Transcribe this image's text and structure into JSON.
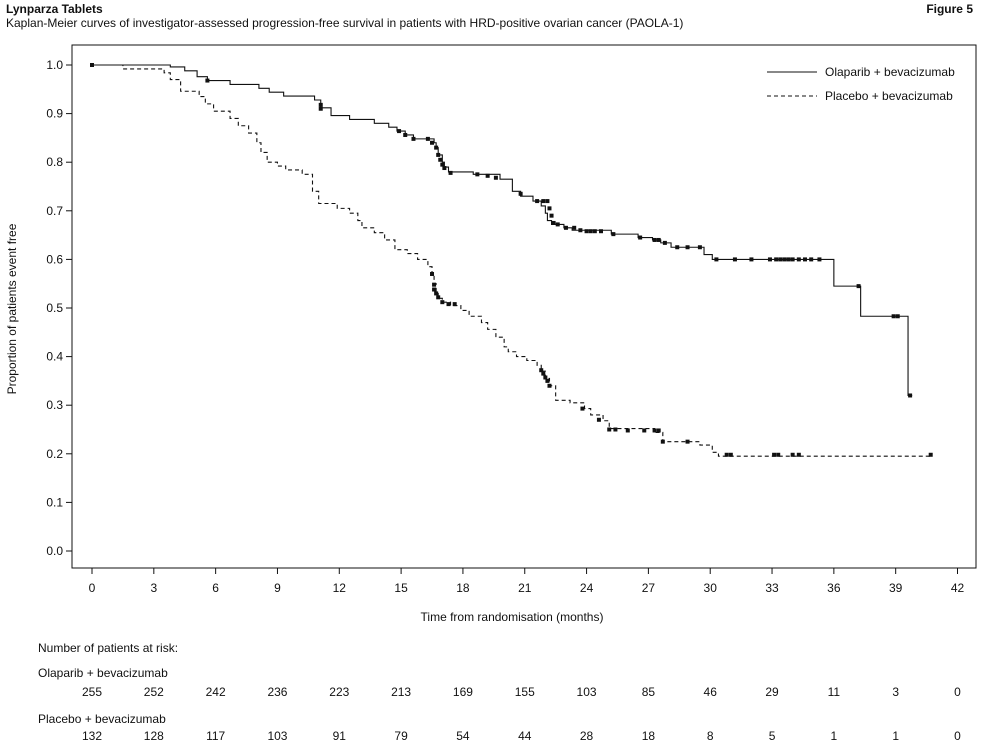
{
  "header": {
    "product": "Lynparza Tablets",
    "figure_label": "Figure 5",
    "subtitle": "Kaplan-Meier curves of investigator-assessed progression-free survival in patients with HRD-positive ovarian cancer (PAOLA-1)"
  },
  "chart_data": {
    "type": "line",
    "subtype": "kaplan-meier step",
    "xlabel": "Time from randomisation (months)",
    "ylabel": "Proportion of patients event free",
    "xlim": [
      0,
      42
    ],
    "ylim": [
      0.0,
      1.0
    ],
    "xticks": [
      0,
      3,
      6,
      9,
      12,
      15,
      18,
      21,
      24,
      27,
      30,
      33,
      36,
      39,
      42
    ],
    "yticks": [
      "0.0",
      "0.1",
      "0.2",
      "0.3",
      "0.4",
      "0.5",
      "0.6",
      "0.7",
      "0.8",
      "0.9",
      "1.0"
    ],
    "grid": false,
    "legend_position": "top-right",
    "series": [
      {
        "name": "Olaparib + bevacizumab",
        "style": "solid",
        "color": "#111111",
        "steps": [
          [
            0,
            1.0
          ],
          [
            3.8,
            0.996
          ],
          [
            4.5,
            0.988
          ],
          [
            5.1,
            0.976
          ],
          [
            5.6,
            0.968
          ],
          [
            6.7,
            0.96
          ],
          [
            8.1,
            0.952
          ],
          [
            8.6,
            0.944
          ],
          [
            9.3,
            0.936
          ],
          [
            10.8,
            0.928
          ],
          [
            11.1,
            0.912
          ],
          [
            11.6,
            0.896
          ],
          [
            12.5,
            0.888
          ],
          [
            13.7,
            0.88
          ],
          [
            14.4,
            0.872
          ],
          [
            14.8,
            0.864
          ],
          [
            15.2,
            0.856
          ],
          [
            15.6,
            0.848
          ],
          [
            16.6,
            0.84
          ],
          [
            16.7,
            0.83
          ],
          [
            16.8,
            0.815
          ],
          [
            17.0,
            0.8
          ],
          [
            17.1,
            0.79
          ],
          [
            17.3,
            0.78
          ],
          [
            18.5,
            0.775
          ],
          [
            19.8,
            0.765
          ],
          [
            20.4,
            0.74
          ],
          [
            20.8,
            0.73
          ],
          [
            21.4,
            0.72
          ],
          [
            21.8,
            0.71
          ],
          [
            22.0,
            0.695
          ],
          [
            22.1,
            0.68
          ],
          [
            22.3,
            0.672
          ],
          [
            22.9,
            0.665
          ],
          [
            23.3,
            0.66
          ],
          [
            25.2,
            0.652
          ],
          [
            26.5,
            0.645
          ],
          [
            27.2,
            0.64
          ],
          [
            27.6,
            0.634
          ],
          [
            28.1,
            0.625
          ],
          [
            29.7,
            0.61
          ],
          [
            30.1,
            0.6
          ],
          [
            36.0,
            0.545
          ],
          [
            37.3,
            0.483
          ],
          [
            39.6,
            0.32
          ]
        ],
        "end": 39.8,
        "censor": [
          [
            0,
            1.0
          ],
          [
            5.6,
            0.968
          ],
          [
            11.1,
            0.918
          ],
          [
            11.1,
            0.91
          ],
          [
            14.9,
            0.864
          ],
          [
            15.2,
            0.856
          ],
          [
            15.6,
            0.848
          ],
          [
            16.3,
            0.848
          ],
          [
            16.5,
            0.84
          ],
          [
            16.7,
            0.83
          ],
          [
            16.8,
            0.815
          ],
          [
            16.9,
            0.805
          ],
          [
            17.0,
            0.795
          ],
          [
            17.1,
            0.788
          ],
          [
            17.4,
            0.778
          ],
          [
            18.7,
            0.775
          ],
          [
            19.2,
            0.772
          ],
          [
            19.6,
            0.768
          ],
          [
            20.8,
            0.735
          ],
          [
            21.6,
            0.72
          ],
          [
            21.9,
            0.72
          ],
          [
            22.1,
            0.72
          ],
          [
            22.2,
            0.705
          ],
          [
            22.3,
            0.69
          ],
          [
            22.4,
            0.675
          ],
          [
            22.6,
            0.672
          ],
          [
            23.0,
            0.665
          ],
          [
            23.4,
            0.665
          ],
          [
            23.7,
            0.66
          ],
          [
            24.0,
            0.658
          ],
          [
            24.2,
            0.658
          ],
          [
            24.4,
            0.658
          ],
          [
            24.7,
            0.658
          ],
          [
            25.3,
            0.652
          ],
          [
            26.6,
            0.645
          ],
          [
            27.3,
            0.64
          ],
          [
            27.5,
            0.64
          ],
          [
            27.8,
            0.634
          ],
          [
            28.4,
            0.625
          ],
          [
            28.9,
            0.625
          ],
          [
            29.5,
            0.625
          ],
          [
            30.3,
            0.6
          ],
          [
            31.2,
            0.6
          ],
          [
            32.0,
            0.6
          ],
          [
            32.9,
            0.6
          ],
          [
            33.2,
            0.6
          ],
          [
            33.4,
            0.6
          ],
          [
            33.6,
            0.6
          ],
          [
            33.8,
            0.6
          ],
          [
            34.0,
            0.6
          ],
          [
            34.3,
            0.6
          ],
          [
            34.6,
            0.6
          ],
          [
            34.9,
            0.6
          ],
          [
            35.3,
            0.6
          ],
          [
            37.2,
            0.545
          ],
          [
            38.9,
            0.483
          ],
          [
            39.1,
            0.483
          ],
          [
            39.7,
            0.32
          ]
        ]
      },
      {
        "name": "Placebo + bevacizumab",
        "style": "dashed",
        "color": "#111111",
        "steps": [
          [
            0,
            1.0
          ],
          [
            1.5,
            0.992
          ],
          [
            3.5,
            0.984
          ],
          [
            3.8,
            0.97
          ],
          [
            4.3,
            0.946
          ],
          [
            5.2,
            0.935
          ],
          [
            5.5,
            0.92
          ],
          [
            5.9,
            0.905
          ],
          [
            6.7,
            0.89
          ],
          [
            7.1,
            0.875
          ],
          [
            7.6,
            0.86
          ],
          [
            8.0,
            0.84
          ],
          [
            8.2,
            0.82
          ],
          [
            8.5,
            0.8
          ],
          [
            9.0,
            0.792
          ],
          [
            9.4,
            0.784
          ],
          [
            10.2,
            0.775
          ],
          [
            10.7,
            0.74
          ],
          [
            11.0,
            0.715
          ],
          [
            11.9,
            0.705
          ],
          [
            12.5,
            0.695
          ],
          [
            12.9,
            0.68
          ],
          [
            13.1,
            0.665
          ],
          [
            13.7,
            0.655
          ],
          [
            14.2,
            0.64
          ],
          [
            14.7,
            0.62
          ],
          [
            15.3,
            0.612
          ],
          [
            15.8,
            0.6
          ],
          [
            16.3,
            0.585
          ],
          [
            16.5,
            0.57
          ],
          [
            16.6,
            0.55
          ],
          [
            16.7,
            0.53
          ],
          [
            16.8,
            0.52
          ],
          [
            17.0,
            0.512
          ],
          [
            17.4,
            0.505
          ],
          [
            17.9,
            0.495
          ],
          [
            18.3,
            0.483
          ],
          [
            18.9,
            0.47
          ],
          [
            19.2,
            0.456
          ],
          [
            19.6,
            0.44
          ],
          [
            20.0,
            0.42
          ],
          [
            20.2,
            0.41
          ],
          [
            20.6,
            0.4
          ],
          [
            21.1,
            0.392
          ],
          [
            21.6,
            0.382
          ],
          [
            21.8,
            0.37
          ],
          [
            22.0,
            0.355
          ],
          [
            22.2,
            0.34
          ],
          [
            22.5,
            0.31
          ],
          [
            23.2,
            0.305
          ],
          [
            23.9,
            0.293
          ],
          [
            24.2,
            0.28
          ],
          [
            24.8,
            0.268
          ],
          [
            25.1,
            0.252
          ],
          [
            27.3,
            0.244
          ],
          [
            27.7,
            0.225
          ],
          [
            29.5,
            0.218
          ],
          [
            30.1,
            0.203
          ],
          [
            30.4,
            0.195
          ]
        ],
        "end": 40.7,
        "censor": [
          [
            16.5,
            0.57
          ],
          [
            16.6,
            0.548
          ],
          [
            16.6,
            0.538
          ],
          [
            16.7,
            0.53
          ],
          [
            16.8,
            0.522
          ],
          [
            17.0,
            0.512
          ],
          [
            17.3,
            0.508
          ],
          [
            17.6,
            0.508
          ],
          [
            21.8,
            0.372
          ],
          [
            21.9,
            0.365
          ],
          [
            22.0,
            0.357
          ],
          [
            22.1,
            0.35
          ],
          [
            22.2,
            0.34
          ],
          [
            23.8,
            0.293
          ],
          [
            24.6,
            0.27
          ],
          [
            25.1,
            0.25
          ],
          [
            25.4,
            0.25
          ],
          [
            26.0,
            0.248
          ],
          [
            26.8,
            0.248
          ],
          [
            27.3,
            0.248
          ],
          [
            27.5,
            0.248
          ],
          [
            27.7,
            0.225
          ],
          [
            28.9,
            0.225
          ],
          [
            30.8,
            0.198
          ],
          [
            31.0,
            0.198
          ],
          [
            33.1,
            0.198
          ],
          [
            33.3,
            0.198
          ],
          [
            34.0,
            0.198
          ],
          [
            34.3,
            0.198
          ],
          [
            40.7,
            0.198
          ]
        ]
      }
    ]
  },
  "risk_table": {
    "heading": "Number of patients at risk:",
    "times": [
      0,
      3,
      6,
      9,
      12,
      15,
      18,
      21,
      24,
      27,
      30,
      33,
      36,
      39,
      42
    ],
    "rows": [
      {
        "name": "Olaparib + bevacizumab",
        "values": [
          "255",
          "252",
          "242",
          "236",
          "223",
          "213",
          "169",
          "155",
          "103",
          "85",
          "46",
          "29",
          "11",
          "3",
          "0"
        ]
      },
      {
        "name": "Placebo + bevacizumab",
        "values": [
          "132",
          "128",
          "117",
          "103",
          "91",
          "79",
          "54",
          "44",
          "28",
          "18",
          "8",
          "5",
          "1",
          "1",
          "0"
        ]
      }
    ]
  }
}
